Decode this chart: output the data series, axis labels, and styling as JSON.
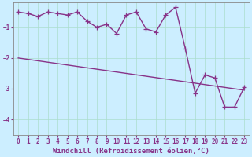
{
  "xlabel": "Windchill (Refroidissement éolien,°C)",
  "ylabel": "",
  "bg_color": "#cceeff",
  "grid_color": "#aaddcc",
  "line_color": "#883388",
  "xlim": [
    -0.5,
    23.5
  ],
  "ylim": [
    -4.5,
    -0.2
  ],
  "yticks": [
    -4,
    -3,
    -2,
    -1
  ],
  "xticks": [
    0,
    1,
    2,
    3,
    4,
    5,
    6,
    7,
    8,
    9,
    10,
    11,
    12,
    13,
    14,
    15,
    16,
    17,
    18,
    19,
    20,
    21,
    22,
    23
  ],
  "series1_x": [
    0,
    1,
    2,
    3,
    4,
    5,
    6,
    7,
    8,
    9,
    10,
    11,
    12,
    13,
    14,
    15,
    16,
    17,
    18,
    19,
    20,
    21,
    22,
    23
  ],
  "series1_y": [
    -0.5,
    -0.55,
    -0.65,
    -0.5,
    -0.55,
    -0.6,
    -0.5,
    -0.8,
    -1.0,
    -0.9,
    -1.2,
    -0.6,
    -0.5,
    -1.05,
    -1.15,
    -0.6,
    -0.35,
    -1.7,
    -3.15,
    -2.55,
    -2.65,
    -3.6,
    -3.6,
    -2.95
  ],
  "series2_x": [
    0,
    23
  ],
  "series2_y": [
    -2.0,
    -3.05
  ],
  "marker": "+",
  "markersize": 4,
  "linewidth": 1.0,
  "xlabel_fontsize": 6.5,
  "tick_fontsize": 5.5
}
